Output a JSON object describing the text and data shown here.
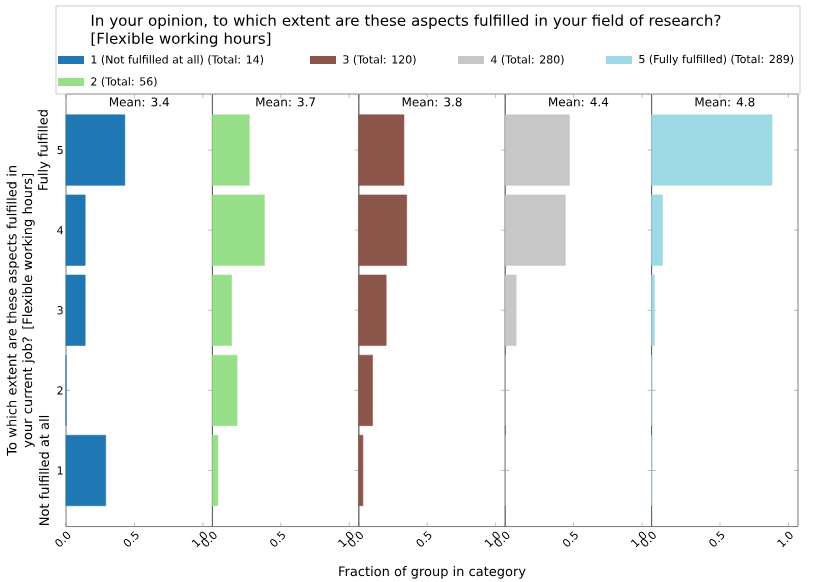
{
  "chart_data": [
    {
      "type": "bar",
      "orientation": "horizontal",
      "title": "Mean: 3.4",
      "legend_title": "In your opinion, to which extent are these aspects fulfilled in your field of research? [Flexible working hours]",
      "legend": "top",
      "ylabel": "To which extent are these aspects fulfilled in your current job? [Flexible working hours]",
      "annotations": [
        "Fully fulfilled",
        "Not fulfilled at all"
      ],
      "categories": [
        "5",
        "4",
        "3",
        "2",
        "1"
      ],
      "xlim": [
        0,
        1.07
      ],
      "xticks": [
        {
          "value": 0,
          "label": "0.0"
        },
        {
          "value": 0.5,
          "label": "0.5"
        },
        {
          "value": 1,
          "label": "1.0"
        }
      ],
      "series": [
        {
          "name": "1 (Not fulfilled at all) (Total: 14)",
          "color": "#1f77b4",
          "values": [
            0.43,
            0.14,
            0.14,
            0,
            0.29
          ]
        }
      ]
    },
    {
      "type": "bar",
      "orientation": "horizontal",
      "title": "Mean: 3.7",
      "tick_labels": "x",
      "categories": [
        "5",
        "4",
        "3",
        "2",
        "1"
      ],
      "xlim": [
        0,
        1.07
      ],
      "xticks": [
        {
          "value": 0,
          "label": "0.0"
        },
        {
          "value": 0.5,
          "label": "0.5"
        },
        {
          "value": 1,
          "label": "1.0"
        }
      ],
      "series": [
        {
          "name": "2 (Total: 56)",
          "color": "#98df8a",
          "values": [
            0.27,
            0.38,
            0.14,
            0.18,
            0.04
          ]
        }
      ]
    },
    {
      "type": "bar",
      "orientation": "horizontal",
      "title": "Mean: 3.8",
      "tick_labels": "x",
      "xlabel": "Fraction of group in category",
      "categories": [
        "5",
        "4",
        "3",
        "2",
        "1"
      ],
      "xlim": [
        0,
        1.07
      ],
      "xticks": [
        {
          "value": 0,
          "label": "0.0"
        },
        {
          "value": 0.5,
          "label": "0.5"
        },
        {
          "value": 1,
          "label": "1.0"
        }
      ],
      "series": [
        {
          "name": "3 (Total: 120)",
          "color": "#8c564b",
          "values": [
            0.33,
            0.35,
            0.2,
            0.1,
            0.03
          ]
        }
      ]
    },
    {
      "type": "bar",
      "orientation": "horizontal",
      "title": "Mean: 4.4",
      "tick_labels": "x",
      "categories": [
        "5",
        "4",
        "3",
        "2",
        "1"
      ],
      "xlim": [
        0,
        1.07
      ],
      "xticks": [
        {
          "value": 0,
          "label": "0.0"
        },
        {
          "value": 0.5,
          "label": "0.5"
        },
        {
          "value": 1,
          "label": "1.0"
        }
      ],
      "series": [
        {
          "name": "4 (Total: 280)",
          "color": "#c7c7c7",
          "values": [
            0.47,
            0.44,
            0.08,
            0,
            0
          ]
        }
      ]
    },
    {
      "type": "bar",
      "orientation": "horizontal",
      "title": "Mean: 4.8",
      "tick_labels": "x",
      "categories": [
        "5",
        "4",
        "3",
        "2",
        "1"
      ],
      "xlim": [
        0,
        1.07
      ],
      "xticks": [
        {
          "value": 0,
          "label": "0.0"
        },
        {
          "value": 0.5,
          "label": "0.5"
        },
        {
          "value": 1,
          "label": "1.0"
        }
      ],
      "series": [
        {
          "name": "5 (Fully fulfilled) (Total: 289)",
          "color": "#9edae5",
          "values": [
            0.88,
            0.08,
            0.02,
            0,
            0
          ]
        }
      ]
    }
  ]
}
